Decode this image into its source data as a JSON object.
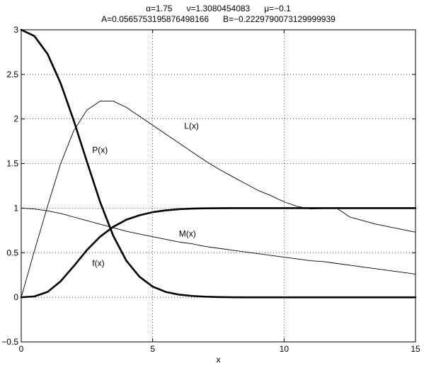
{
  "chart_data": {
    "type": "line",
    "title_lines": [
      "α=1.75      ν=1.3080454083      μ=−0.1",
      "A=0.0565753195876498166      B=−0.2229790073129999939"
    ],
    "xlabel": "x",
    "ylabel": "",
    "xlim": [
      0,
      15
    ],
    "ylim": [
      -0.5,
      3
    ],
    "xticks": [
      0,
      5,
      10,
      15
    ],
    "xtick_labels": [
      "0",
      "5",
      "10",
      "15"
    ],
    "yticks": [
      -0.5,
      0,
      0.5,
      1,
      1.5,
      2,
      2.5,
      3
    ],
    "ytick_labels": [
      "−0.5",
      "0",
      "0.5",
      "1",
      "1.5",
      "2",
      "2.5",
      "3"
    ],
    "grid": true,
    "x": [
      0,
      0.5,
      1,
      1.5,
      2,
      2.5,
      3,
      3.5,
      4,
      4.5,
      5,
      5.5,
      6,
      6.5,
      7,
      7.5,
      8,
      8.5,
      9,
      9.5,
      10,
      10.5,
      11,
      11.5,
      12,
      12.5,
      13,
      13.5,
      14,
      14.5,
      15
    ],
    "series": [
      {
        "name": "P(x)",
        "weight": "bold",
        "values": [
          3.0,
          2.93,
          2.73,
          2.4,
          1.98,
          1.52,
          1.07,
          0.69,
          0.41,
          0.23,
          0.12,
          0.06,
          0.03,
          0.015,
          0.007,
          0.003,
          0.001,
          0,
          0,
          0,
          0,
          0,
          0,
          0,
          0,
          0,
          0,
          0,
          0,
          0,
          0
        ],
        "label_at": [
          2.7,
          1.62
        ]
      },
      {
        "name": "f(x)",
        "weight": "bold",
        "values": [
          0,
          0.01,
          0.06,
          0.18,
          0.35,
          0.53,
          0.68,
          0.79,
          0.87,
          0.92,
          0.955,
          0.975,
          0.988,
          0.995,
          0.998,
          0.999,
          1,
          1,
          1,
          1,
          1,
          1,
          1,
          1,
          1,
          1,
          1,
          1,
          1,
          1,
          1
        ],
        "label_at": [
          2.7,
          0.35
        ]
      },
      {
        "name": "L(x)",
        "weight": "thin",
        "values": [
          0,
          0.52,
          1.02,
          1.5,
          1.87,
          2.1,
          2.2,
          2.2,
          2.13,
          2.03,
          1.93,
          1.83,
          1.73,
          1.63,
          1.53,
          1.44,
          1.36,
          1.28,
          1.2,
          1.14,
          1.07,
          1.02,
          0.99,
          0.995,
          1.0,
          0.9,
          0.86,
          0.82,
          0.79,
          0.76,
          0.73
        ],
        "label_at": [
          6.2,
          1.89
        ]
      },
      {
        "name": "M(x)",
        "weight": "thin",
        "values": [
          1.0,
          0.99,
          0.97,
          0.94,
          0.9,
          0.86,
          0.82,
          0.78,
          0.74,
          0.71,
          0.68,
          0.65,
          0.62,
          0.6,
          0.57,
          0.55,
          0.53,
          0.51,
          0.49,
          0.47,
          0.45,
          0.43,
          0.41,
          0.4,
          0.38,
          0.36,
          0.34,
          0.32,
          0.3,
          0.28,
          0.26
        ],
        "label_at": [
          6.0,
          0.68
        ]
      }
    ]
  }
}
